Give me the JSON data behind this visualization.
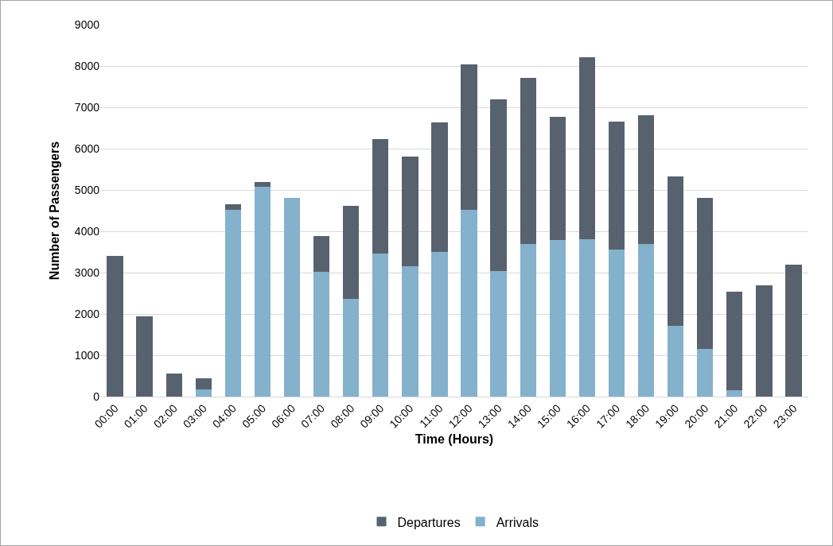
{
  "chart_data": {
    "type": "bar",
    "stacked": true,
    "xlabel": "Time (Hours)",
    "ylabel": "Number of Passengers",
    "categories": [
      "00:00",
      "01:00",
      "02:00",
      "03:00",
      "04:00",
      "05:00",
      "06:00",
      "07:00",
      "08:00",
      "09:00",
      "10:00",
      "11:00",
      "12:00",
      "13:00",
      "14:00",
      "15:00",
      "16:00",
      "17:00",
      "18:00",
      "19:00",
      "20:00",
      "21:00",
      "22:00",
      "23:00"
    ],
    "series": [
      {
        "name": "Arrivals",
        "color": "#84b1cc",
        "values": [
          0,
          0,
          0,
          170,
          4520,
          5070,
          4800,
          3020,
          2370,
          3460,
          3150,
          3500,
          4520,
          3040,
          3690,
          3780,
          3810,
          3560,
          3700,
          1720,
          1150,
          150,
          0,
          0
        ]
      },
      {
        "name": "Departures",
        "color": "#58626e",
        "values": [
          3400,
          1950,
          550,
          280,
          130,
          130,
          0,
          870,
          2240,
          2780,
          2650,
          3130,
          3520,
          4160,
          4030,
          2980,
          4410,
          3090,
          3110,
          3610,
          3650,
          2390,
          2690,
          3200
        ]
      }
    ],
    "ylim": [
      0,
      9000
    ],
    "yticks": [
      0,
      1000,
      2000,
      3000,
      4000,
      5000,
      6000,
      7000,
      8000,
      9000
    ],
    "grid": "y",
    "legend": "bottom"
  }
}
